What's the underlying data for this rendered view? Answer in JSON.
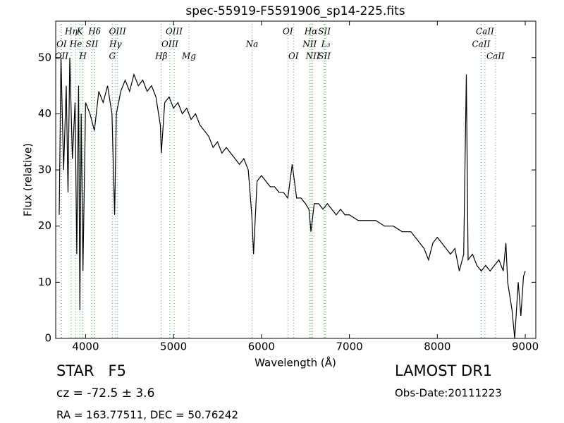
{
  "chart_data": {
    "type": "line",
    "title": "spec-55919-F5591906_sp14-225.fits",
    "x_label": "Wavelength (Å)",
    "y_label": "Flux (relative)",
    "xlim": [
      3660,
      9120
    ],
    "ylim": [
      0,
      56.5
    ],
    "xticks": [
      4000,
      5000,
      6000,
      7000,
      8000,
      9000
    ],
    "yticks": [
      0,
      10,
      20,
      30,
      40,
      50
    ],
    "x": [
      3700,
      3720,
      3750,
      3780,
      3800,
      3820,
      3850,
      3880,
      3900,
      3920,
      3935,
      3950,
      3970,
      4000,
      4050,
      4100,
      4150,
      4200,
      4250,
      4300,
      4330,
      4350,
      4400,
      4450,
      4500,
      4550,
      4600,
      4650,
      4700,
      4750,
      4800,
      4850,
      4861,
      4900,
      4950,
      5000,
      5050,
      5100,
      5150,
      5200,
      5250,
      5300,
      5350,
      5400,
      5450,
      5500,
      5550,
      5600,
      5650,
      5700,
      5750,
      5800,
      5850,
      5890,
      5910,
      5950,
      6000,
      6050,
      6100,
      6150,
      6200,
      6250,
      6300,
      6350,
      6400,
      6450,
      6500,
      6540,
      6563,
      6600,
      6650,
      6700,
      6750,
      6800,
      6850,
      6900,
      6950,
      7000,
      7100,
      7200,
      7300,
      7400,
      7500,
      7600,
      7700,
      7800,
      7850,
      7900,
      7950,
      8000,
      8050,
      8100,
      8150,
      8200,
      8250,
      8300,
      8330,
      8350,
      8400,
      8450,
      8500,
      8550,
      8600,
      8650,
      8700,
      8750,
      8780,
      8800,
      8850,
      8880,
      8920,
      8950,
      8980,
      9000
    ],
    "series": [
      {
        "color": "#000000",
        "values": [
          22,
          50,
          30,
          45,
          26,
          50,
          32,
          42,
          15,
          45,
          5,
          40,
          12,
          42,
          40,
          37,
          44,
          42,
          45,
          40,
          22,
          40,
          44,
          46,
          44,
          47,
          45,
          46,
          44,
          45,
          43,
          38,
          33,
          42,
          43,
          41,
          42,
          40,
          41,
          39,
          40,
          38,
          37,
          36,
          34,
          35,
          33,
          34,
          33,
          32,
          31,
          32,
          30,
          22,
          15,
          28,
          29,
          28,
          27,
          27,
          26,
          26,
          25,
          31,
          25,
          25,
          24,
          23,
          19,
          24,
          24,
          23,
          24,
          23,
          22,
          23,
          22,
          22,
          21,
          21,
          21,
          20,
          20,
          19,
          19,
          17,
          16,
          14,
          17,
          18,
          17,
          16,
          15,
          16,
          12,
          15,
          47,
          14,
          15,
          13,
          12,
          13,
          12,
          13,
          14,
          12,
          17,
          10,
          5,
          0,
          10,
          4,
          11,
          12
        ]
      }
    ],
    "line_color": "#4caf50",
    "spectral_lines": [
      [
        {
          "x": 3835,
          "label": "Hη"
        },
        {
          "x": 3934,
          "label": "K"
        },
        {
          "x": 4102,
          "label": "Hδ"
        },
        {
          "x": 4363,
          "label": "OIII"
        },
        {
          "x": 5007,
          "label": "OIII"
        },
        {
          "x": 6300,
          "label": "OI"
        },
        {
          "x": 6563,
          "label": "Hα"
        },
        {
          "x": 6716,
          "label": "SII"
        },
        {
          "x": 8542,
          "label": "CaII"
        }
      ],
      [
        {
          "x": 3727,
          "label": "OI"
        },
        {
          "x": 3889,
          "label": "He"
        },
        {
          "x": 4072,
          "label": "SII"
        },
        {
          "x": 4340,
          "label": "Hγ"
        },
        {
          "x": 4959,
          "label": "OIII"
        },
        {
          "x": 5893,
          "label": "Na"
        },
        {
          "x": 6548,
          "label": "NII"
        },
        {
          "x": 6731,
          "label": "L₃"
        },
        {
          "x": 8498,
          "label": "CaII"
        }
      ],
      [
        {
          "x": 3727,
          "label": "OII"
        },
        {
          "x": 3970,
          "label": "H"
        },
        {
          "x": 4304,
          "label": "G"
        },
        {
          "x": 4861,
          "label": "Hβ"
        },
        {
          "x": 5175,
          "label": "Mg"
        },
        {
          "x": 6364,
          "label": "OI"
        },
        {
          "x": 6583,
          "label": "NII"
        },
        {
          "x": 6716,
          "label": "SII"
        },
        {
          "x": 8662,
          "label": "CaII"
        }
      ]
    ],
    "object_class": "STAR   F5",
    "redshift": "cz = -72.5 ± 3.6",
    "coordinates": "RA = 163.77511, DEC = 50.76242",
    "survey": "LAMOST DR1",
    "obs_date": "Obs-Date:20111223"
  }
}
